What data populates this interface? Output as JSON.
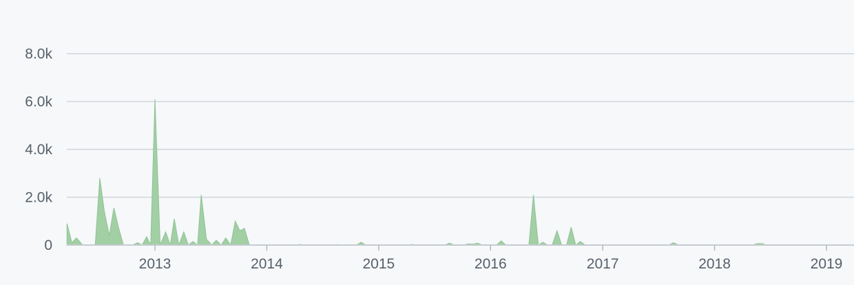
{
  "chart_data": {
    "type": "area",
    "title": "",
    "xlabel": "",
    "ylabel": "",
    "fill_color": "#a2cfa4",
    "stroke_color": "#8fc394",
    "grid": true,
    "ylim": [
      0,
      8500
    ],
    "xlim": [
      "2012-03",
      "2019-03"
    ],
    "y_ticks": [
      {
        "value": 0,
        "label": "0"
      },
      {
        "value": 2000,
        "label": "2.0k"
      },
      {
        "value": 4000,
        "label": "4.0k"
      },
      {
        "value": 6000,
        "label": "6.0k"
      },
      {
        "value": 8000,
        "label": "8.0k"
      }
    ],
    "x_ticks": [
      {
        "value": "2013-01",
        "label": "2013"
      },
      {
        "value": "2014-01",
        "label": "2014"
      },
      {
        "value": "2015-01",
        "label": "2015"
      },
      {
        "value": "2016-01",
        "label": "2016"
      },
      {
        "value": "2017-01",
        "label": "2017"
      },
      {
        "value": "2018-01",
        "label": "2018"
      },
      {
        "value": "2019-01",
        "label": "2019"
      }
    ],
    "series": [
      {
        "points": [
          [
            "2012-03-20",
            900
          ],
          [
            "2012-04-05",
            100
          ],
          [
            "2012-04-20",
            300
          ],
          [
            "2012-05-10",
            0
          ],
          [
            "2012-06-20",
            0
          ],
          [
            "2012-07-05",
            2800
          ],
          [
            "2012-07-20",
            1400
          ],
          [
            "2012-08-05",
            400
          ],
          [
            "2012-08-20",
            1550
          ],
          [
            "2012-09-05",
            700
          ],
          [
            "2012-09-20",
            0
          ],
          [
            "2012-10-20",
            0
          ],
          [
            "2012-11-05",
            100
          ],
          [
            "2012-11-20",
            0
          ],
          [
            "2012-12-05",
            350
          ],
          [
            "2012-12-18",
            0
          ],
          [
            "2013-01-01",
            6100
          ],
          [
            "2013-01-18",
            0
          ],
          [
            "2013-02-05",
            550
          ],
          [
            "2013-02-20",
            0
          ],
          [
            "2013-03-05",
            1100
          ],
          [
            "2013-03-20",
            0
          ],
          [
            "2013-04-05",
            550
          ],
          [
            "2013-04-20",
            0
          ],
          [
            "2013-05-05",
            150
          ],
          [
            "2013-05-20",
            0
          ],
          [
            "2013-06-01",
            2100
          ],
          [
            "2013-06-18",
            250
          ],
          [
            "2013-07-05",
            0
          ],
          [
            "2013-07-20",
            200
          ],
          [
            "2013-08-05",
            0
          ],
          [
            "2013-08-20",
            300
          ],
          [
            "2013-09-05",
            0
          ],
          [
            "2013-09-20",
            1000
          ],
          [
            "2013-10-05",
            600
          ],
          [
            "2013-10-20",
            700
          ],
          [
            "2013-11-05",
            0
          ],
          [
            "2014-04-05",
            0
          ],
          [
            "2014-04-20",
            30
          ],
          [
            "2014-05-05",
            0
          ],
          [
            "2014-08-05",
            0
          ],
          [
            "2014-08-20",
            20
          ],
          [
            "2014-09-05",
            0
          ],
          [
            "2014-10-20",
            0
          ],
          [
            "2014-11-05",
            120
          ],
          [
            "2014-11-20",
            0
          ],
          [
            "2015-04-05",
            0
          ],
          [
            "2015-04-20",
            30
          ],
          [
            "2015-05-05",
            0
          ],
          [
            "2015-08-05",
            0
          ],
          [
            "2015-08-20",
            80
          ],
          [
            "2015-09-05",
            0
          ],
          [
            "2015-10-05",
            0
          ],
          [
            "2015-10-20",
            50
          ],
          [
            "2015-11-05",
            40
          ],
          [
            "2015-11-20",
            80
          ],
          [
            "2015-12-05",
            0
          ],
          [
            "2016-01-20",
            0
          ],
          [
            "2016-02-05",
            180
          ],
          [
            "2016-02-20",
            0
          ],
          [
            "2016-05-05",
            0
          ],
          [
            "2016-05-20",
            2100
          ],
          [
            "2016-06-05",
            0
          ],
          [
            "2016-06-20",
            120
          ],
          [
            "2016-07-05",
            0
          ],
          [
            "2016-07-20",
            0
          ],
          [
            "2016-08-05",
            600
          ],
          [
            "2016-08-20",
            0
          ],
          [
            "2016-09-05",
            0
          ],
          [
            "2016-09-20",
            750
          ],
          [
            "2016-10-05",
            0
          ],
          [
            "2016-10-20",
            150
          ],
          [
            "2016-11-05",
            0
          ],
          [
            "2016-12-05",
            0
          ],
          [
            "2016-12-20",
            15
          ],
          [
            "2017-01-05",
            0
          ],
          [
            "2017-08-05",
            0
          ],
          [
            "2017-08-20",
            100
          ],
          [
            "2017-09-05",
            0
          ],
          [
            "2018-05-05",
            0
          ],
          [
            "2018-05-20",
            60
          ],
          [
            "2018-06-05",
            60
          ],
          [
            "2018-06-20",
            0
          ],
          [
            "2019-03-01",
            0
          ]
        ]
      }
    ]
  }
}
